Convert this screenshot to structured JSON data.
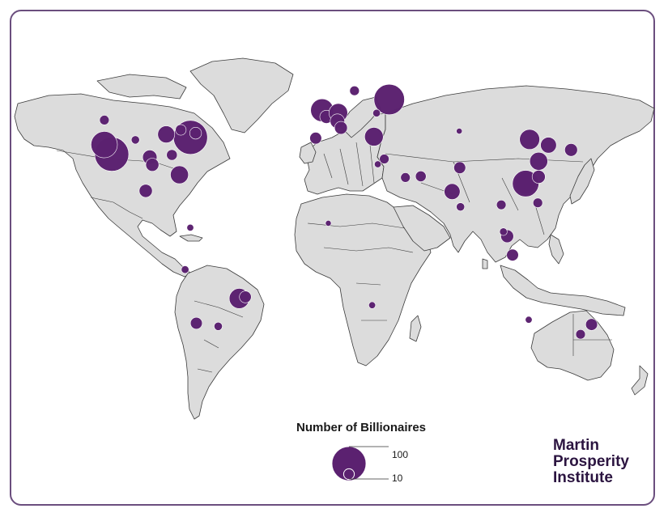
{
  "map": {
    "legend": {
      "title": "Number of Billionaires",
      "large_label": "100",
      "small_label": "10"
    },
    "brand": {
      "line1": "Martin",
      "line2": "Prosperity",
      "line3": "Institute"
    },
    "colors": {
      "bubble": "#5b2170",
      "land": "#dcdcdc",
      "frame": "#6b4e7e"
    },
    "bubbles": [
      {
        "region": "Los Angeles",
        "lon": -118.2,
        "lat": 34.0,
        "count": 100
      },
      {
        "region": "San Francisco",
        "lon": -122.4,
        "lat": 37.8,
        "count": 60
      },
      {
        "region": "New York",
        "lon": -74.0,
        "lat": 40.7,
        "count": 100
      },
      {
        "region": "Chicago",
        "lon": -87.6,
        "lat": 41.9,
        "count": 25
      },
      {
        "region": "Dallas",
        "lon": -96.8,
        "lat": 32.8,
        "count": 18
      },
      {
        "region": "Houston",
        "lon": -95.4,
        "lat": 29.8,
        "count": 15
      },
      {
        "region": "Miami",
        "lon": -80.2,
        "lat": 25.8,
        "count": 28
      },
      {
        "region": "Atlanta",
        "lon": -84.4,
        "lat": 33.7,
        "count": 10
      },
      {
        "region": "Seattle",
        "lon": -122.3,
        "lat": 47.6,
        "count": 8
      },
      {
        "region": "Denver",
        "lon": -104.9,
        "lat": 39.7,
        "count": 6
      },
      {
        "region": "Boston",
        "lon": -71.1,
        "lat": 42.4,
        "count": 12
      },
      {
        "region": "Toronto",
        "lon": -79.4,
        "lat": 43.7,
        "count": 10
      },
      {
        "region": "Mexico City",
        "lon": -99.1,
        "lat": 19.4,
        "count": 15
      },
      {
        "region": "Sao Paulo",
        "lon": -46.6,
        "lat": -23.5,
        "count": 35
      },
      {
        "region": "Rio de Janeiro",
        "lon": -43.2,
        "lat": -22.9,
        "count": 12
      },
      {
        "region": "Santiago",
        "lon": -70.7,
        "lat": -33.4,
        "count": 12
      },
      {
        "region": "Buenos Aires",
        "lon": -58.4,
        "lat": -34.6,
        "count": 6
      },
      {
        "region": "Lima",
        "lon": -77.0,
        "lat": -12.0,
        "count": 5
      },
      {
        "region": "Bogota",
        "lon": -74.1,
        "lat": 4.7,
        "count": 4
      },
      {
        "region": "London",
        "lon": -0.1,
        "lat": 51.5,
        "count": 45
      },
      {
        "region": "Paris",
        "lon": 2.3,
        "lat": 48.9,
        "count": 15
      },
      {
        "region": "Germany",
        "lon": 9.0,
        "lat": 50.5,
        "count": 30
      },
      {
        "region": "Switzerland",
        "lon": 8.5,
        "lat": 47.2,
        "count": 18
      },
      {
        "region": "Italy",
        "lon": 10.5,
        "lat": 44.5,
        "count": 14
      },
      {
        "region": "Madrid",
        "lon": -3.7,
        "lat": 40.4,
        "count": 12
      },
      {
        "region": "Stockholm",
        "lon": 18.1,
        "lat": 59.3,
        "count": 8
      },
      {
        "region": "Moscow",
        "lon": 37.6,
        "lat": 55.8,
        "count": 80
      },
      {
        "region": "Istanbul",
        "lon": 29.0,
        "lat": 41.0,
        "count": 30
      },
      {
        "region": "Tel Aviv",
        "lon": 34.8,
        "lat": 32.1,
        "count": 8
      },
      {
        "region": "Dubai",
        "lon": 55.3,
        "lat": 25.2,
        "count": 10
      },
      {
        "region": "Riyadh",
        "lon": 46.7,
        "lat": 24.7,
        "count": 8
      },
      {
        "region": "Mumbai",
        "lon": 72.9,
        "lat": 19.1,
        "count": 22
      },
      {
        "region": "Delhi",
        "lon": 77.2,
        "lat": 28.6,
        "count": 12
      },
      {
        "region": "Bangalore",
        "lon": 77.6,
        "lat": 13.0,
        "count": 6
      },
      {
        "region": "Beijing",
        "lon": 116.4,
        "lat": 39.9,
        "count": 35
      },
      {
        "region": "Shanghai",
        "lon": 121.5,
        "lat": 31.2,
        "count": 28
      },
      {
        "region": "Shenzhen",
        "lon": 114.1,
        "lat": 22.5,
        "count": 40
      },
      {
        "region": "Hong Kong",
        "lon": 114.2,
        "lat": 22.3,
        "count": 60
      },
      {
        "region": "Taipei",
        "lon": 121.5,
        "lat": 25.0,
        "count": 15
      },
      {
        "region": "Seoul",
        "lon": 127.0,
        "lat": 37.6,
        "count": 22
      },
      {
        "region": "Tokyo",
        "lon": 139.7,
        "lat": 35.7,
        "count": 14
      },
      {
        "region": "Bangkok",
        "lon": 100.5,
        "lat": 13.8,
        "count": 8
      },
      {
        "region": "Manila",
        "lon": 121.0,
        "lat": 14.6,
        "count": 8
      },
      {
        "region": "Singapore",
        "lon": 103.8,
        "lat": 1.3,
        "count": 14
      },
      {
        "region": "Jakarta",
        "lon": 106.8,
        "lat": -6.2,
        "count": 12
      },
      {
        "region": "Kuala Lumpur",
        "lon": 101.7,
        "lat": 3.1,
        "count": 5
      },
      {
        "region": "Sydney",
        "lon": 151.2,
        "lat": -33.9,
        "count": 12
      },
      {
        "region": "Melbourne",
        "lon": 145.0,
        "lat": -37.8,
        "count": 8
      },
      {
        "region": "Perth",
        "lon": 115.9,
        "lat": -32.0,
        "count": 4
      },
      {
        "region": "Johannesburg",
        "lon": 28.0,
        "lat": -26.2,
        "count": 4
      },
      {
        "region": "Lagos",
        "lon": 3.4,
        "lat": 6.5,
        "count": 3
      },
      {
        "region": "Cairo",
        "lon": 31.2,
        "lat": 30.0,
        "count": 4
      },
      {
        "region": "Kyiv",
        "lon": 30.5,
        "lat": 50.4,
        "count": 5
      },
      {
        "region": "Almaty",
        "lon": 76.9,
        "lat": 43.2,
        "count": 3
      }
    ]
  }
}
